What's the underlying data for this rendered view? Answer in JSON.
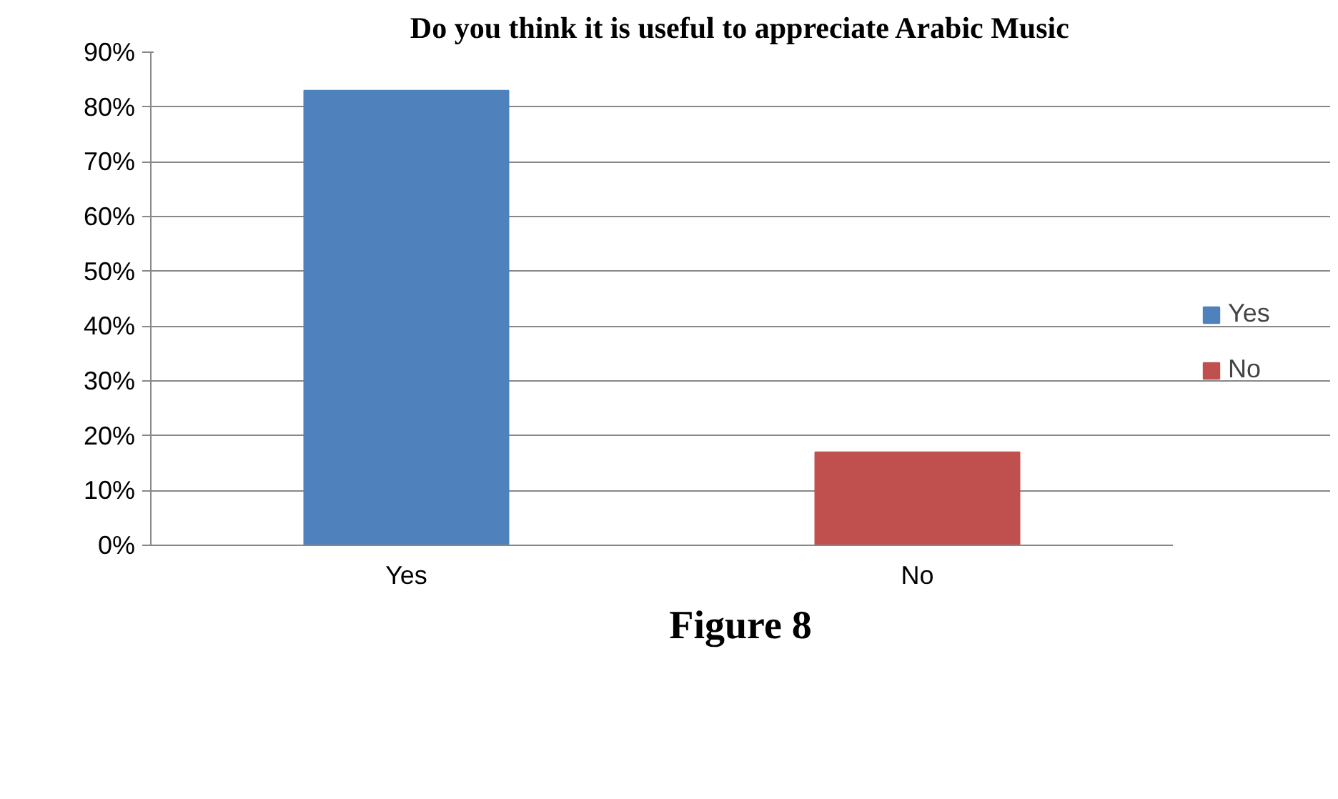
{
  "chart_data": {
    "type": "bar",
    "title": "Do you think it is useful to appreciate Arabic Music",
    "categories": [
      "Yes",
      "No"
    ],
    "series": [
      {
        "name": "Yes",
        "color": "#4f81bd",
        "values": [
          83,
          null
        ]
      },
      {
        "name": "No",
        "color": "#c0504d",
        "values": [
          null,
          17
        ]
      }
    ],
    "ylim": [
      0,
      90
    ],
    "yticks": [
      {
        "value": 0,
        "label": "0%"
      },
      {
        "value": 10,
        "label": "10%"
      },
      {
        "value": 20,
        "label": "20%"
      },
      {
        "value": 30,
        "label": "30%"
      },
      {
        "value": 40,
        "label": "40%"
      },
      {
        "value": 50,
        "label": "50%"
      },
      {
        "value": 60,
        "label": "60%"
      },
      {
        "value": 70,
        "label": "70%"
      },
      {
        "value": 80,
        "label": "80%"
      },
      {
        "value": 90,
        "label": "90%"
      }
    ],
    "grid": "y",
    "legend": "right",
    "annotations": [
      "Figure 8"
    ]
  }
}
